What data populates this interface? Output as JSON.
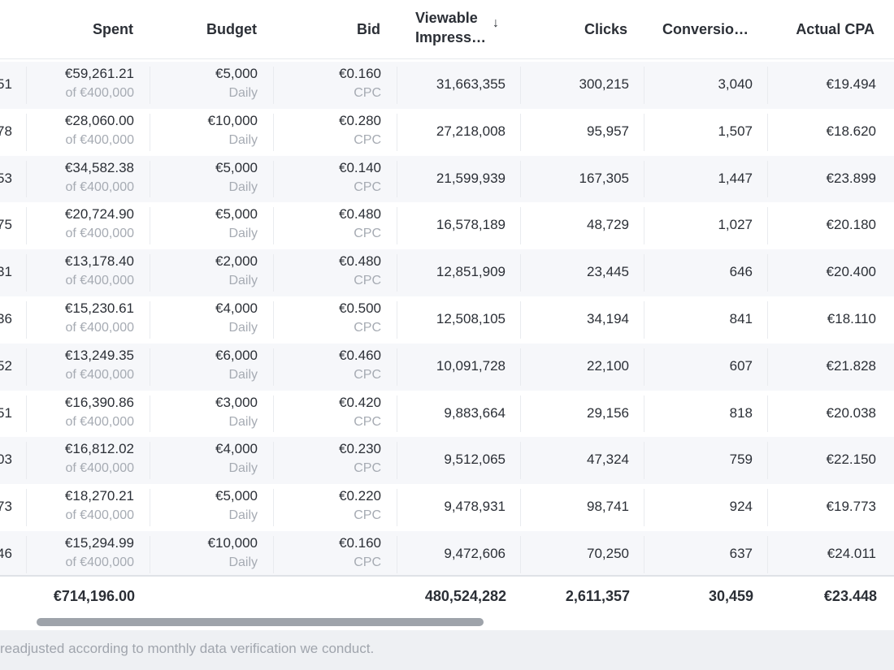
{
  "columns": {
    "spent": "Spent",
    "budget": "Budget",
    "bid": "Bid",
    "viewable_line1": "Viewable",
    "viewable_line2": "Impress…",
    "clicks": "Clicks",
    "conversions": "Conversio…",
    "actual_cpa": "Actual CPA",
    "sort_icon": "arrow-down-icon",
    "sort_glyph": "↓"
  },
  "rows": [
    {
      "id_tail": "51",
      "spent": "€59,261.21",
      "spent_of": "of  €400,000",
      "budget": "€5,000",
      "budget_period": "Daily",
      "bid": "€0.160",
      "bid_type": "CPC",
      "impressions": "31,663,355",
      "clicks": "300,215",
      "conversions": "3,040",
      "cpa": "€19.494"
    },
    {
      "id_tail": "78",
      "spent": "€28,060.00",
      "spent_of": "of  €400,000",
      "budget": "€10,000",
      "budget_period": "Daily",
      "bid": "€0.280",
      "bid_type": "CPC",
      "impressions": "27,218,008",
      "clicks": "95,957",
      "conversions": "1,507",
      "cpa": "€18.620"
    },
    {
      "id_tail": "53",
      "spent": "€34,582.38",
      "spent_of": "of  €400,000",
      "budget": "€5,000",
      "budget_period": "Daily",
      "bid": "€0.140",
      "bid_type": "CPC",
      "impressions": "21,599,939",
      "clicks": "167,305",
      "conversions": "1,447",
      "cpa": "€23.899"
    },
    {
      "id_tail": "75",
      "spent": "€20,724.90",
      "spent_of": "of  €400,000",
      "budget": "€5,000",
      "budget_period": "Daily",
      "bid": "€0.480",
      "bid_type": "CPC",
      "impressions": "16,578,189",
      "clicks": "48,729",
      "conversions": "1,027",
      "cpa": "€20.180"
    },
    {
      "id_tail": "31",
      "spent": "€13,178.40",
      "spent_of": "of  €400,000",
      "budget": "€2,000",
      "budget_period": "Daily",
      "bid": "€0.480",
      "bid_type": "CPC",
      "impressions": "12,851,909",
      "clicks": "23,445",
      "conversions": "646",
      "cpa": "€20.400"
    },
    {
      "id_tail": "36",
      "spent": "€15,230.61",
      "spent_of": "of  €400,000",
      "budget": "€4,000",
      "budget_period": "Daily",
      "bid": "€0.500",
      "bid_type": "CPC",
      "impressions": "12,508,105",
      "clicks": "34,194",
      "conversions": "841",
      "cpa": "€18.110"
    },
    {
      "id_tail": "52",
      "spent": "€13,249.35",
      "spent_of": "of  €400,000",
      "budget": "€6,000",
      "budget_period": "Daily",
      "bid": "€0.460",
      "bid_type": "CPC",
      "impressions": "10,091,728",
      "clicks": "22,100",
      "conversions": "607",
      "cpa": "€21.828"
    },
    {
      "id_tail": "51",
      "spent": "€16,390.86",
      "spent_of": "of  €400,000",
      "budget": "€3,000",
      "budget_period": "Daily",
      "bid": "€0.420",
      "bid_type": "CPC",
      "impressions": "9,883,664",
      "clicks": "29,156",
      "conversions": "818",
      "cpa": "€20.038"
    },
    {
      "id_tail": "03",
      "spent": "€16,812.02",
      "spent_of": "of  €400,000",
      "budget": "€4,000",
      "budget_period": "Daily",
      "bid": "€0.230",
      "bid_type": "CPC",
      "impressions": "9,512,065",
      "clicks": "47,324",
      "conversions": "759",
      "cpa": "€22.150"
    },
    {
      "id_tail": "73",
      "spent": "€18,270.21",
      "spent_of": "of  €400,000",
      "budget": "€5,000",
      "budget_period": "Daily",
      "bid": "€0.220",
      "bid_type": "CPC",
      "impressions": "9,478,931",
      "clicks": "98,741",
      "conversions": "924",
      "cpa": "€19.773"
    },
    {
      "id_tail": "46",
      "spent": "€15,294.99",
      "spent_of": "of  €400,000",
      "budget": "€10,000",
      "budget_period": "Daily",
      "bid": "€0.160",
      "bid_type": "CPC",
      "impressions": "9,472,606",
      "clicks": "70,250",
      "conversions": "637",
      "cpa": "€24.011"
    }
  ],
  "totals": {
    "spent": "€714,196.00",
    "impressions": "480,524,282",
    "clicks": "2,611,357",
    "conversions": "30,459",
    "cpa": "€23.448"
  },
  "footnote": "readjusted according to monthly data verification we conduct.",
  "colors": {
    "stripe": "#f6f7fa",
    "text": "#2b2f36",
    "muted": "#a6abb3",
    "scrollbar": "#9ea3aa"
  }
}
